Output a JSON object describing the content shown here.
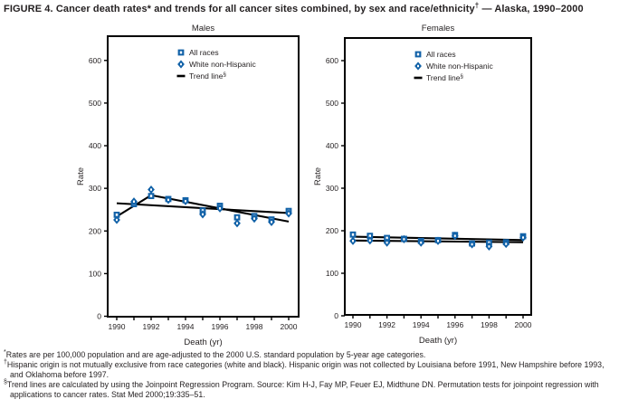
{
  "figure": {
    "title_pre": "FIGURE 4. Cancer death rates* and trends for all cancer sites combined, by sex and race/ethnicity",
    "title_sup": "†",
    "title_post": " — Alaska, 1990–2000"
  },
  "colors": {
    "marker_blue": "#1262a8",
    "line_black": "#000000",
    "text_dark": "#231f20"
  },
  "chart_data": [
    {
      "type": "scatter",
      "title": "Males",
      "xlabel": "Death (yr)",
      "ylabel": "Rate",
      "x": [
        1990,
        1991,
        1992,
        1993,
        1994,
        1995,
        1996,
        1997,
        1998,
        1999,
        2000
      ],
      "xtick_labels": [
        1990,
        1992,
        1994,
        1996,
        1998,
        2000
      ],
      "yticks": [
        0,
        100,
        200,
        300,
        400,
        500,
        600
      ],
      "ylim": [
        0,
        660
      ],
      "grid": false,
      "legend_position": "upper-middle",
      "legend": [
        {
          "label": "All races",
          "sup": "",
          "marker": "square"
        },
        {
          "label": "White non-Hispanic",
          "sup": "",
          "marker": "diamond"
        },
        {
          "label": "Trend line",
          "sup": "§",
          "marker": "dash"
        }
      ],
      "series": [
        {
          "name": "All races",
          "marker": "square",
          "values": [
            238,
            263,
            282,
            275,
            272,
            248,
            259,
            232,
            235,
            227,
            247
          ]
        },
        {
          "name": "White non-Hispanic",
          "marker": "diamond",
          "values": [
            226,
            269,
            297,
            273,
            270,
            239,
            253,
            218,
            229,
            221,
            241
          ]
        }
      ],
      "trend_lines": [
        {
          "name": "All races trend",
          "points": [
            [
              1990,
              265
            ],
            [
              2000,
              242
            ]
          ]
        },
        {
          "name": "White non-Hispanic trend",
          "points": [
            [
              1990,
              234
            ],
            [
              1992,
              284
            ],
            [
              2000,
              222
            ]
          ]
        }
      ]
    },
    {
      "type": "scatter",
      "title": "Females",
      "xlabel": "Death (yr)",
      "ylabel": "Rate",
      "x": [
        1990,
        1991,
        1992,
        1993,
        1994,
        1995,
        1996,
        1997,
        1998,
        1999,
        2000
      ],
      "xtick_labels": [
        1990,
        1992,
        1994,
        1996,
        1998,
        2000
      ],
      "yticks": [
        0,
        100,
        200,
        300,
        400,
        500,
        600
      ],
      "ylim": [
        0,
        660
      ],
      "grid": false,
      "legend_position": "upper-middle",
      "legend": [
        {
          "label": "All races",
          "sup": "",
          "marker": "square"
        },
        {
          "label": "White non-Hispanic",
          "sup": "",
          "marker": "diamond"
        },
        {
          "label": "Trend line",
          "sup": "§",
          "marker": "dash"
        }
      ],
      "series": [
        {
          "name": "All races",
          "marker": "square",
          "values": [
            191,
            188,
            183,
            181,
            176,
            178,
            190,
            170,
            172,
            173,
            187
          ]
        },
        {
          "name": "White non-Hispanic",
          "marker": "diamond",
          "values": [
            176,
            177,
            172,
            180,
            172,
            176,
            188,
            168,
            163,
            169,
            184
          ]
        }
      ],
      "trend_lines": [
        {
          "name": "All races trend",
          "points": [
            [
              1990,
              186
            ],
            [
              2000,
              178
            ]
          ]
        },
        {
          "name": "White non-Hispanic trend",
          "points": [
            [
              1990,
              177
            ],
            [
              2000,
              173
            ]
          ]
        }
      ]
    }
  ],
  "footnotes": [
    {
      "marker": "*",
      "text": "Rates are per 100,000 population and are age-adjusted to the 2000 U.S. standard population by 5-year age categories."
    },
    {
      "marker": "†",
      "text": "Hispanic origin is not mutually exclusive from race categories (white and black). Hispanic origin was not collected by Louisiana before 1991, New Hampshire before 1993, and Oklahoma before 1997."
    },
    {
      "marker": "§",
      "text": "Trend lines are calculated by using the Joinpoint Regression Program. Source: Kim H-J, Fay MP, Feuer EJ, Midthune DN. Permutation tests for joinpoint regression with applications to cancer rates. Stat Med 2000;19:335–51."
    }
  ]
}
